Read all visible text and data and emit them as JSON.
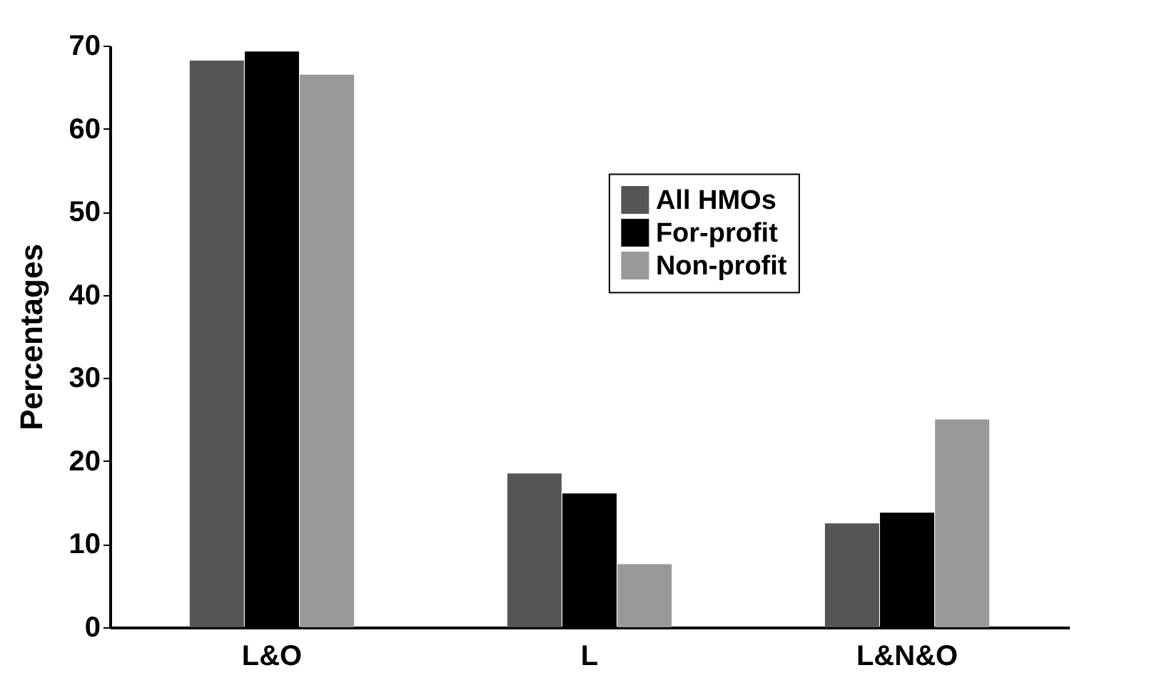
{
  "chart_data": {
    "type": "bar",
    "ylabel": "Percentages",
    "categories": [
      "L&O",
      "L",
      "L&N&O"
    ],
    "series": [
      {
        "name": "All HMOs",
        "color": "#555555",
        "values": [
          68.2,
          18.5,
          12.5
        ]
      },
      {
        "name": "For-profit",
        "color": "#000000",
        "values": [
          69.3,
          16.1,
          13.8
        ]
      },
      {
        "name": "Non-profit",
        "color": "#999999",
        "values": [
          66.5,
          7.6,
          25
        ]
      }
    ],
    "ylim": [
      0,
      70
    ],
    "yticks": [
      0,
      10,
      20,
      30,
      40,
      50,
      60,
      70
    ],
    "grid": false,
    "legend": "top right"
  }
}
